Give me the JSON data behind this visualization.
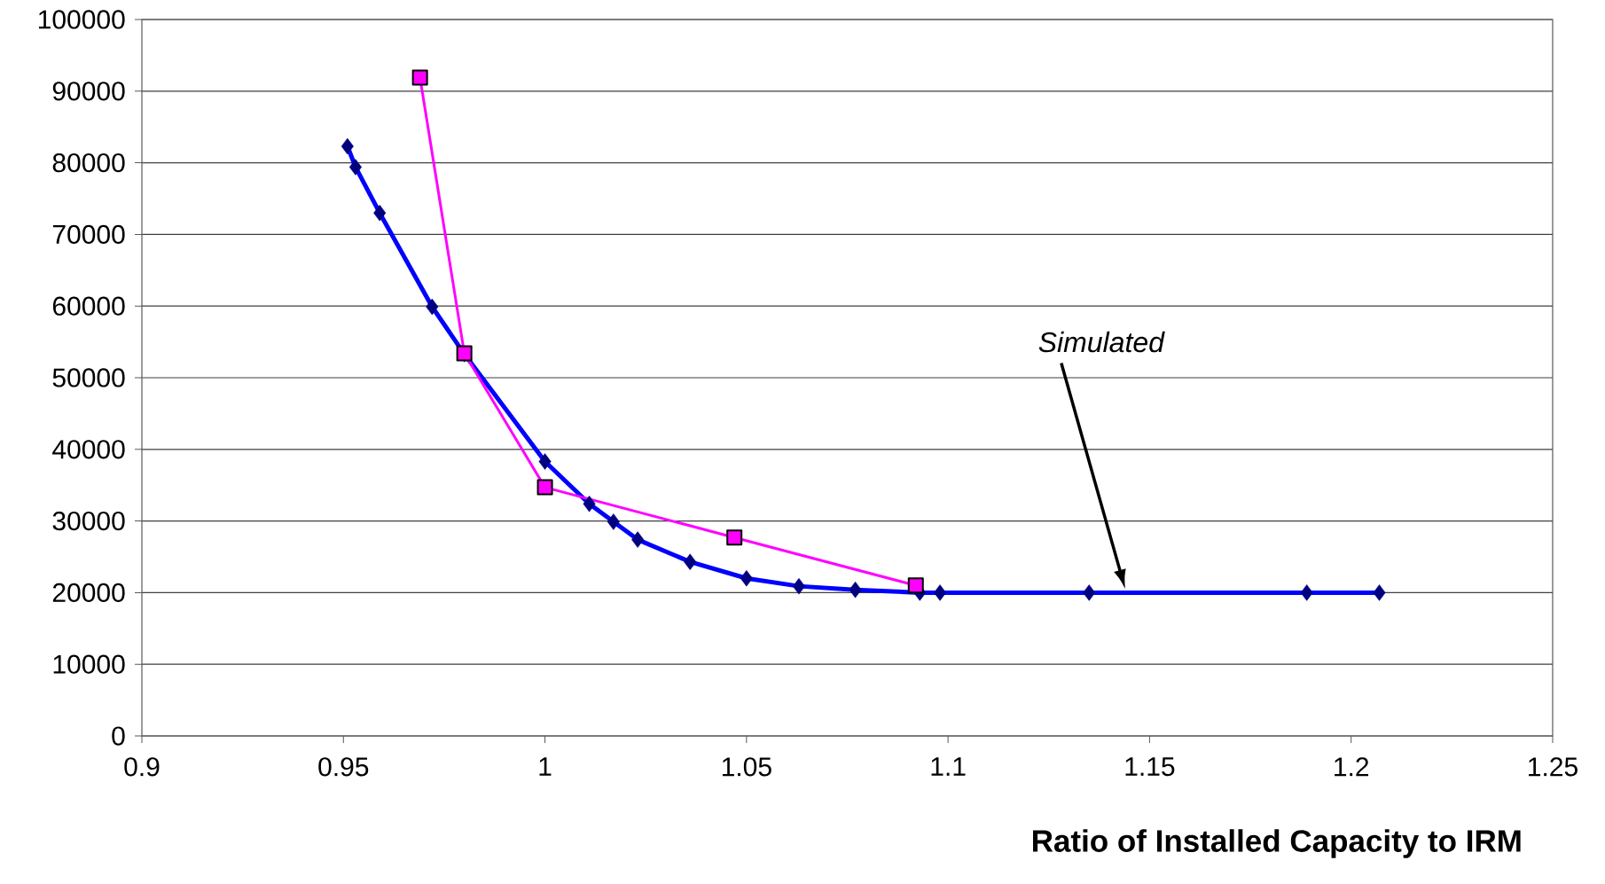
{
  "chart_data": {
    "type": "line",
    "xlabel": "Ratio of Installed Capacity to IRM",
    "xlim": [
      0.9,
      1.25
    ],
    "xticks": [
      0.9,
      0.95,
      1,
      1.05,
      1.1,
      1.15,
      1.2,
      1.25
    ],
    "ylim": [
      0,
      100000
    ],
    "yticks": [
      0,
      10000,
      20000,
      30000,
      40000,
      50000,
      60000,
      70000,
      80000,
      90000,
      100000
    ],
    "grid": "y",
    "line_style": "solid",
    "annotations": [
      "Simulated"
    ],
    "series": [
      {
        "color": "#0000ff",
        "marker": "diamond",
        "x": [
          0.951,
          0.953,
          0.959,
          0.972,
          0.98,
          1.0,
          1.011,
          1.017,
          1.023,
          1.036,
          1.05,
          1.063,
          1.077,
          1.093,
          1.098,
          1.135,
          1.189,
          1.207
        ],
        "values": [
          82300,
          79400,
          73000,
          59900,
          53300,
          38300,
          32400,
          29900,
          27400,
          24300,
          22000,
          20900,
          20400,
          20000,
          20000,
          20000,
          20000,
          20000
        ]
      },
      {
        "color": "#ff00ff",
        "marker": "square",
        "x": [
          0.969,
          0.98,
          1.0,
          1.047,
          1.092
        ],
        "values": [
          91900,
          53400,
          34700,
          27700,
          21000
        ]
      }
    ]
  }
}
